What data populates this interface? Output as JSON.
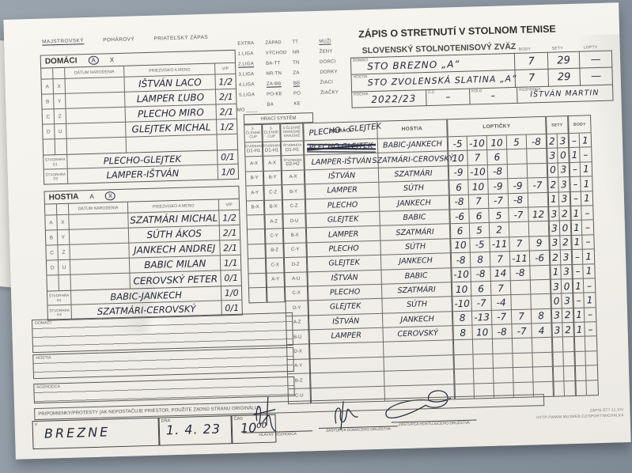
{
  "header": {
    "title": "ZÁPIS O STRETNUTÍ V STOLNOM TENISE",
    "subtitle": "SLOVENSKÝ STOLNOTENISOVÝ ZVÄZ",
    "match_types": [
      "MAJSTROVSKÝ",
      "POHÁROVÝ",
      "PRIATEĽSKÝ ZÁPAS"
    ]
  },
  "leagues": {
    "col1": [
      "EXTRA",
      "1.LIGA",
      "2.LIGA",
      "3.LIGA",
      "4.LIGA",
      "5.LIGA"
    ],
    "col2": [
      "ZÁPAD",
      "VÝCHOD",
      "BA-TT",
      "NR-TN",
      "ZA-BB",
      "PO-KE",
      "BA"
    ],
    "col3": [
      "TT",
      "NR",
      "TN",
      "ZA",
      "BB",
      "PO",
      "KE"
    ],
    "col4": [
      "MUŽI",
      "ŽENY",
      "DORCI",
      "DORKY",
      "ŽIACI",
      "ŽIAČKY"
    ],
    "pen_underlined": [
      "2.LIGA",
      "ZA-BB",
      "BB",
      "MUŽI"
    ],
    "mo_label": "MO ____"
  },
  "teams": {
    "score_headers": [
      "BODY",
      "SETY",
      "LOPTY"
    ],
    "domaci_label": "DOMÁCI",
    "hostia_label": "HOSTIA",
    "domaci": {
      "name": "STO BREZNO „A“",
      "body": "7",
      "sety": "29",
      "lopty": "—"
    },
    "hostia": {
      "name": "STO ZVOLENSKÁ SLATINA „A“",
      "body": "7",
      "sety": "29",
      "lopty": "—"
    },
    "rocnik_label": "ROČNÍK",
    "rocnik": "2022/23",
    "cz_label": "Č.Z.",
    "cz": "–",
    "kolo_label": "KOLO",
    "kolo": "–",
    "rozhodca_label": "ROZHODCA",
    "rozhodca": "IŠTVÁN MARTIN"
  },
  "roster_headers": {
    "datum": "DÁTUM NARODENIA",
    "meno": "PRIEZVISKO A MENO",
    "vp": "V/P"
  },
  "domaci_roster": {
    "section_label": "DOMÁCI",
    "mark_a": "A",
    "mark_x": "X",
    "circled": "A",
    "rows": [
      {
        "l1": "A",
        "l2": "X",
        "name": "IŠTVÁN LACO",
        "vp": "1/2"
      },
      {
        "l1": "B",
        "l2": "Y",
        "name": "LAMPER ĽUBO",
        "vp": "2/1"
      },
      {
        "l1": "C",
        "l2": "Z",
        "name": "PLECHO MIRO",
        "vp": "2/1"
      },
      {
        "l1": "D",
        "l2": "U",
        "name": "GLEJTEK MICHAL",
        "vp": "1/2"
      },
      {
        "l1": "",
        "l2": "",
        "name": "",
        "vp": ""
      }
    ],
    "doubles": [
      {
        "label1": "ŠTVORHRA",
        "label2": "D1",
        "name": "PLECHO-GLEJTEK",
        "vp": "0/1"
      },
      {
        "label1": "ŠTVORHRA",
        "label2": "D2",
        "name": "LAMPER-IŠTVÁN",
        "vp": "1/0"
      }
    ]
  },
  "hostia_roster": {
    "section_label": "HOSTIA",
    "mark_a": "A",
    "mark_x": "X",
    "circled": "X",
    "rows": [
      {
        "l1": "A",
        "l2": "X",
        "name": "SZATMÁRI MICHAL",
        "vp": "1/2"
      },
      {
        "l1": "B",
        "l2": "Y",
        "name": "SÚTH ÁKOS",
        "vp": "2/1"
      },
      {
        "l1": "C",
        "l2": "Z",
        "name": "JANKECH ANDREJ",
        "vp": "2/1"
      },
      {
        "l1": "D",
        "l2": "U",
        "name": "BABIC MILAN",
        "vp": "1/1"
      },
      {
        "l1": "",
        "l2": "",
        "name": "CEROVSKÝ PETER",
        "vp": "0/1"
      }
    ],
    "doubles": [
      {
        "label1": "ŠTVORHRA",
        "label2": "H1",
        "name": "BABIC-JANKECH",
        "vp": "1/0"
      },
      {
        "label1": "ŠTVORHRA",
        "label2": "H2",
        "name": "SZATMÁRI-CEROVSKÝ",
        "vp": "0/1"
      }
    ]
  },
  "grid": {
    "hraci_system_label": "HRACÍ SYSTÉM",
    "sys_headers": [
      "2-ČLENNÉ CUP",
      "3-ČLENNÉ CUP",
      "4-ČLENNÉ OKRESNÉ KRAJSKÉ"
    ],
    "sys1": [
      "ŠTVORHRA D1-H1",
      "A-X",
      "B-Y",
      "A-Y",
      "B-X",
      "",
      "",
      "",
      "",
      "",
      ""
    ],
    "sys2": [
      "ŠTVORHRA D1-H1",
      "A-X",
      "B-Y",
      "C-Z",
      "B-X",
      "A-Z",
      "C-Y",
      "B-Z",
      "C-X",
      "A-Y",
      ""
    ],
    "sys3": [
      "ŠTVORHRA D1-H1",
      "ŠTVORHRA D2-H2",
      "A-X",
      "B-Y",
      "C-Z",
      "D-U",
      "B-X",
      "C-Y",
      "D-Z",
      "A-U",
      "C-X",
      "D-Y",
      "A-Z",
      "B-U",
      "D-X",
      "A-Y",
      "B-Z",
      "C-U"
    ],
    "col_domaci": "DOMÁCI",
    "col_hostia": "HOSTIA",
    "col_lopticky": "LOPTIČKY",
    "col_sety": "SETY",
    "col_body": "BODY",
    "correction": "PLECHO - GLEJTEK",
    "rows": [
      {
        "home": "PLECHO GLEJTEK",
        "home_crossed": true,
        "away": "BABIC-JANKECH",
        "balls": [
          "-5",
          "-10",
          "10",
          "5",
          "-8"
        ],
        "sety": [
          "2",
          "3"
        ],
        "body": [
          "–",
          "1"
        ]
      },
      {
        "home": "LAMPER-IŠTVÁN",
        "away": "SZATMÁRI-CEROVSKÝ",
        "balls": [
          "10",
          "7",
          "6",
          "",
          ""
        ],
        "sety": [
          "3",
          "0"
        ],
        "body": [
          "1",
          "–"
        ]
      },
      {
        "home": "IŠTVÁN",
        "away": "SZATMÁRI",
        "balls": [
          "-9",
          "-10",
          "-8",
          "",
          ""
        ],
        "sety": [
          "0",
          "3"
        ],
        "body": [
          "–",
          "1"
        ]
      },
      {
        "home": "LAMPER",
        "away": "SÚTH",
        "balls": [
          "6",
          "10",
          "-9",
          "-9",
          "-7"
        ],
        "sety": [
          "2",
          "3"
        ],
        "body": [
          "–",
          "1"
        ]
      },
      {
        "home": "PLECHO",
        "away": "JANKECH",
        "balls": [
          "-8",
          "7",
          "-7",
          "-8",
          ""
        ],
        "sety": [
          "1",
          "3"
        ],
        "body": [
          "–",
          "1"
        ]
      },
      {
        "home": "GLEJTEK",
        "away": "BABIC",
        "balls": [
          "-6",
          "6",
          "5",
          "-7",
          "12"
        ],
        "sety": [
          "3",
          "2"
        ],
        "body": [
          "1",
          "–"
        ]
      },
      {
        "home": "LAMPER",
        "away": "SZATMÁRI",
        "balls": [
          "6",
          "5",
          "2",
          "",
          ""
        ],
        "sety": [
          "3",
          "0"
        ],
        "body": [
          "1",
          "–"
        ]
      },
      {
        "home": "PLECHO",
        "away": "SÚTH",
        "balls": [
          "10",
          "-5",
          "-11",
          "7",
          "9"
        ],
        "sety": [
          "3",
          "2"
        ],
        "body": [
          "1",
          "–"
        ]
      },
      {
        "home": "GLEJTEK",
        "away": "JANKECH",
        "balls": [
          "-8",
          "8",
          "7",
          "-11",
          "-6"
        ],
        "sety": [
          "2",
          "3"
        ],
        "body": [
          "–",
          "1"
        ]
      },
      {
        "home": "IŠTVÁN",
        "away": "BABIC",
        "balls": [
          "-10",
          "-8",
          "14",
          "-8",
          ""
        ],
        "sety": [
          "1",
          "3"
        ],
        "body": [
          "–",
          "1"
        ]
      },
      {
        "home": "PLECHO",
        "away": "SZATMÁRI",
        "balls": [
          "10",
          "6",
          "7",
          "",
          ""
        ],
        "sety": [
          "3",
          "0"
        ],
        "body": [
          "1",
          "–"
        ]
      },
      {
        "home": "GLEJTEK",
        "away": "SÚTH",
        "balls": [
          "-10",
          "-7",
          "-4",
          "",
          ""
        ],
        "sety": [
          "0",
          "3"
        ],
        "body": [
          "–",
          "1"
        ]
      },
      {
        "home": "IŠTVÁN",
        "away": "JANKECH",
        "balls": [
          "8",
          "-13",
          "-7",
          "7",
          "8"
        ],
        "sety": [
          "3",
          "2"
        ],
        "body": [
          "1",
          "–"
        ]
      },
      {
        "home": "LAMPER",
        "away": "CEROVSKÝ",
        "balls": [
          "8",
          "10",
          "-8",
          "-7",
          "4"
        ],
        "sety": [
          "3",
          "2"
        ],
        "body": [
          "1",
          "–"
        ]
      },
      {
        "home": "",
        "away": "",
        "balls": [
          "",
          "",
          "",
          "",
          ""
        ],
        "sety": [
          "",
          ""
        ],
        "body": [
          "",
          ""
        ]
      },
      {
        "home": "",
        "away": "",
        "balls": [
          "",
          "",
          "",
          "",
          ""
        ],
        "sety": [
          "",
          ""
        ],
        "body": [
          "",
          ""
        ]
      },
      {
        "home": "",
        "away": "",
        "balls": [
          "",
          "",
          "",
          "",
          ""
        ],
        "sety": [
          "",
          ""
        ],
        "body": [
          "",
          ""
        ]
      },
      {
        "home": "",
        "away": "",
        "balls": [
          "",
          "",
          "",
          "",
          ""
        ],
        "sety": [
          "",
          ""
        ],
        "body": [
          "",
          ""
        ]
      }
    ]
  },
  "notes": {
    "domaci_label": "DOMÁCI",
    "hostia_label": "HOSTIA",
    "rozhodca_label": "ROZHODCA",
    "pripomienky": "PRIPOMIENKY/PROTESTY (AK NEPOSTAČUJE PRIESTOR, POUŽITE ZADNÚ STRANU ORIGINÁLU)"
  },
  "footer": {
    "v_label": "V",
    "v_value": "BREZNE",
    "dna_label": "DŇA",
    "dna_value": "1. 4. 23",
    "cas_label": "ČAS",
    "cas_value": "10⁰⁰",
    "sig1_label": "HLAVNÝ ROZHODCA",
    "sig2_label": "ZÁSTUPCA DOMÁCEHO DRUŽSTVA",
    "sig3_label": "ZÁSTUPCA HOSŤUJÚCEHO DRUŽSTVA",
    "form_code": "ZÁPIS ŠTT 11.XIV",
    "form_url": "HTTP://WWW.MUJWEB.CZ/SPORT/MICHALKA"
  }
}
